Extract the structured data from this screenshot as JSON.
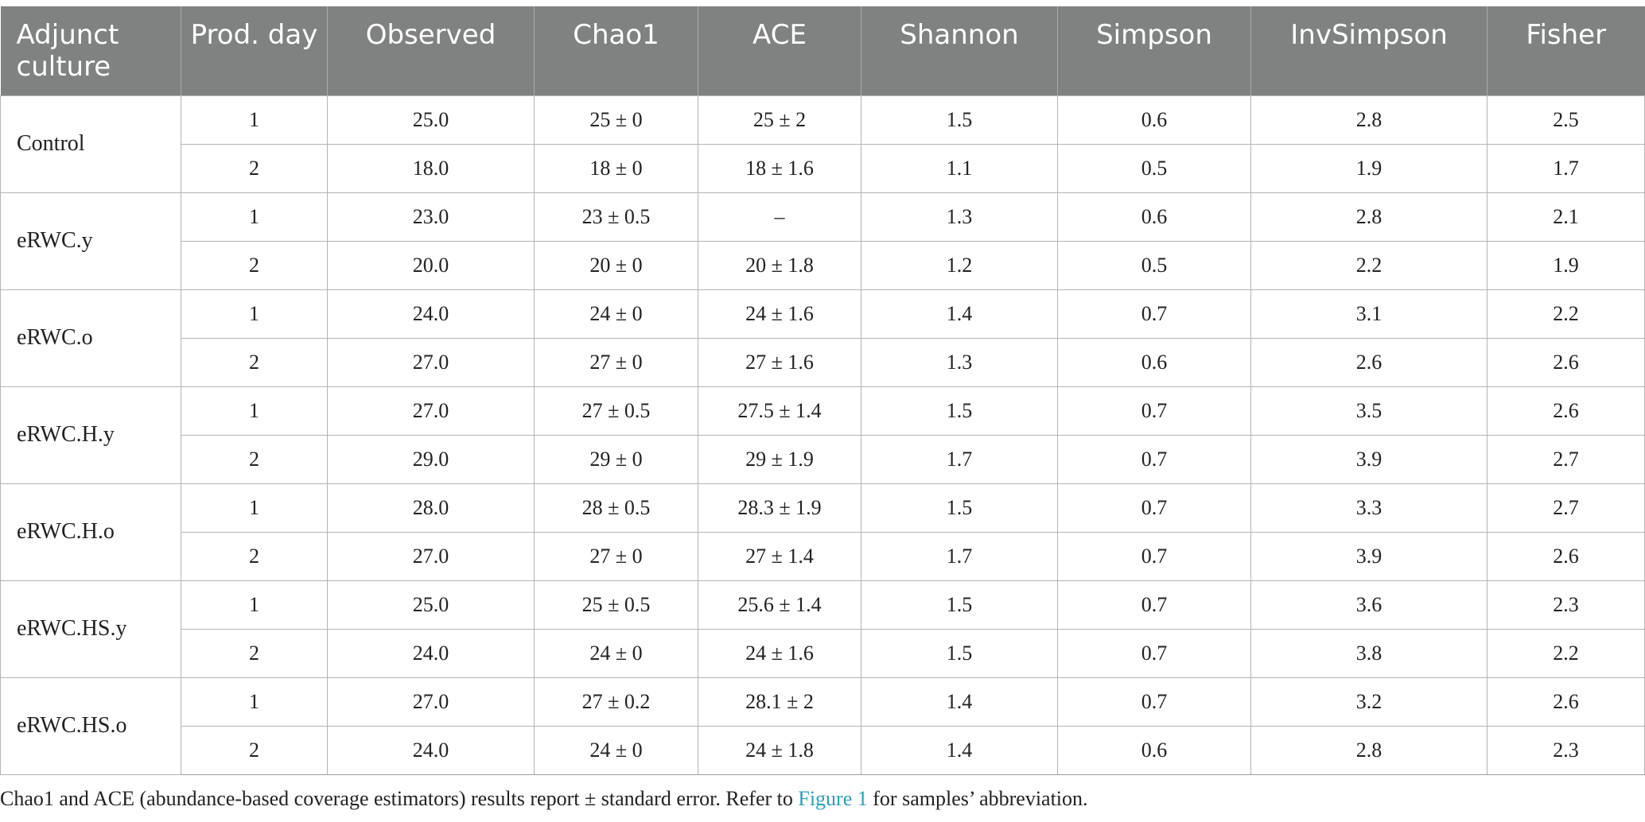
{
  "headers": [
    "Adjunct culture",
    "Prod. day",
    "Observed",
    "Chao1",
    "ACE",
    "Shannon",
    "Simpson",
    "InvSimpson",
    "Fisher"
  ],
  "groups": [
    {
      "name": "Control",
      "rows": [
        [
          "1",
          "25.0",
          "25 ± 0",
          "25 ± 2",
          "1.5",
          "0.6",
          "2.8",
          "2.5"
        ],
        [
          "2",
          "18.0",
          "18 ± 0",
          "18 ± 1.6",
          "1.1",
          "0.5",
          "1.9",
          "1.7"
        ]
      ]
    },
    {
      "name": "eRWC.y",
      "rows": [
        [
          "1",
          "23.0",
          "23 ± 0.5",
          "–",
          "1.3",
          "0.6",
          "2.8",
          "2.1"
        ],
        [
          "2",
          "20.0",
          "20 ± 0",
          "20 ± 1.8",
          "1.2",
          "0.5",
          "2.2",
          "1.9"
        ]
      ]
    },
    {
      "name": "eRWC.o",
      "rows": [
        [
          "1",
          "24.0",
          "24 ± 0",
          "24 ± 1.6",
          "1.4",
          "0.7",
          "3.1",
          "2.2"
        ],
        [
          "2",
          "27.0",
          "27 ± 0",
          "27 ± 1.6",
          "1.3",
          "0.6",
          "2.6",
          "2.6"
        ]
      ]
    },
    {
      "name": "eRWC.H.y",
      "rows": [
        [
          "1",
          "27.0",
          "27 ± 0.5",
          "27.5 ± 1.4",
          "1.5",
          "0.7",
          "3.5",
          "2.6"
        ],
        [
          "2",
          "29.0",
          "29 ± 0",
          "29 ± 1.9",
          "1.7",
          "0.7",
          "3.9",
          "2.7"
        ]
      ]
    },
    {
      "name": "eRWC.H.o",
      "rows": [
        [
          "1",
          "28.0",
          "28 ± 0.5",
          "28.3 ± 1.9",
          "1.5",
          "0.7",
          "3.3",
          "2.7"
        ],
        [
          "2",
          "27.0",
          "27 ± 0",
          "27 ± 1.4",
          "1.7",
          "0.7",
          "3.9",
          "2.6"
        ]
      ]
    },
    {
      "name": "eRWC.HS.y",
      "rows": [
        [
          "1",
          "25.0",
          "25 ± 0.5",
          "25.6 ± 1.4",
          "1.5",
          "0.7",
          "3.6",
          "2.3"
        ],
        [
          "2",
          "24.0",
          "24 ± 0",
          "24 ± 1.6",
          "1.5",
          "0.7",
          "3.8",
          "2.2"
        ]
      ]
    },
    {
      "name": "eRWC.HS.o",
      "rows": [
        [
          "1",
          "27.0",
          "27 ± 0.2",
          "28.1 ± 2",
          "1.4",
          "0.7",
          "3.2",
          "2.6"
        ],
        [
          "2",
          "24.0",
          "24 ± 0",
          "24 ± 1.8",
          "1.4",
          "0.6",
          "2.8",
          "2.3"
        ]
      ]
    }
  ],
  "caption": {
    "before": "Chao1 and ACE (abundance-based coverage estimators) results report ± standard error. Refer to ",
    "link": "Figure 1",
    "after": " for samples’ abbreviation."
  },
  "colors": {
    "header_bg": "#808281",
    "header_text": "#ffffff",
    "link": "#2a9fb8"
  }
}
